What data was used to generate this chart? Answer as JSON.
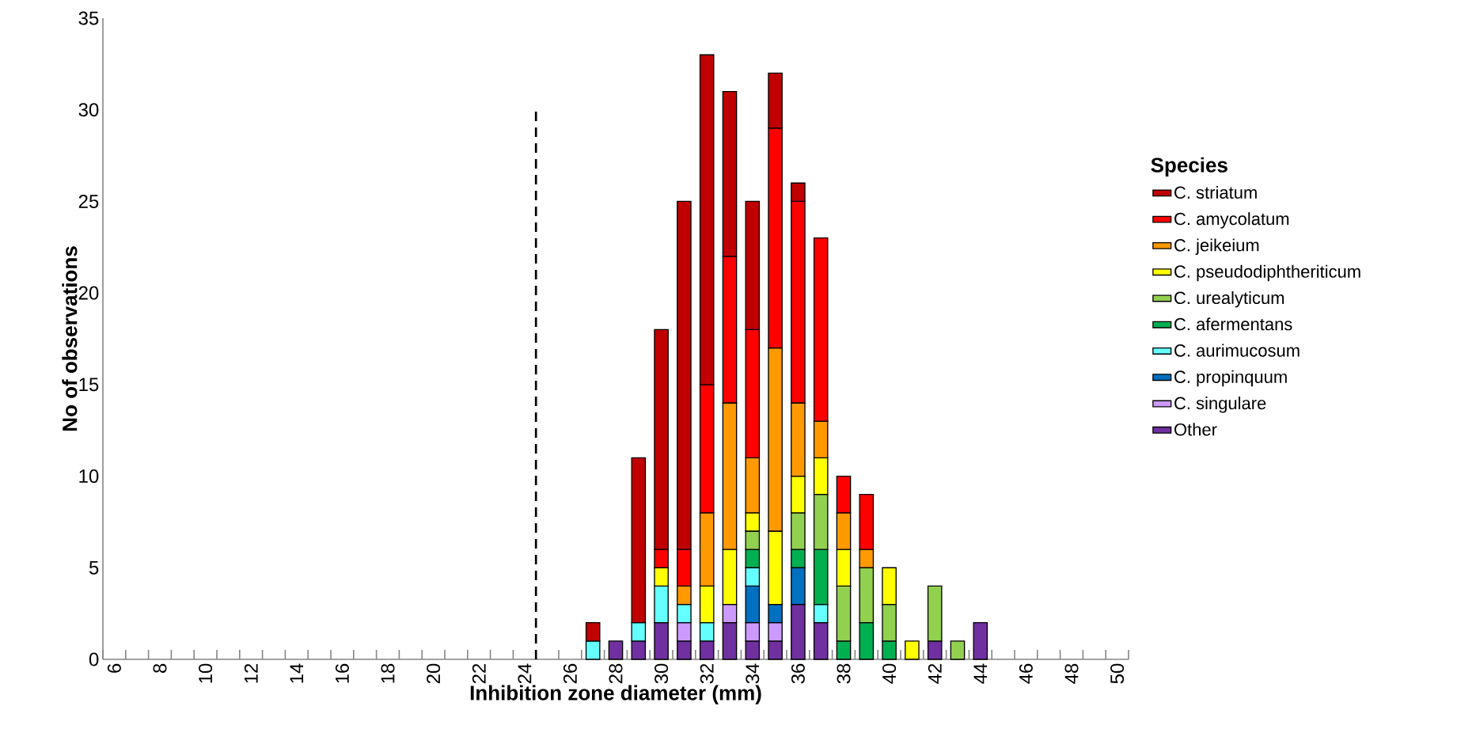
{
  "chart_data": {
    "type": "bar",
    "stacked": true,
    "xlabel": "Inhibition zone diameter (mm)",
    "ylabel": "No of observations",
    "legend_title": "Species",
    "x": [
      6,
      7,
      8,
      9,
      10,
      11,
      12,
      13,
      14,
      15,
      16,
      17,
      18,
      19,
      20,
      21,
      22,
      23,
      24,
      25,
      26,
      27,
      28,
      29,
      30,
      31,
      32,
      33,
      34,
      35,
      36,
      37,
      38,
      39,
      40,
      41,
      42,
      43,
      44,
      45,
      46,
      47,
      48,
      49,
      50
    ],
    "xlim": [
      5.5,
      50.5
    ],
    "xticks": [
      6,
      8,
      10,
      12,
      14,
      16,
      18,
      20,
      22,
      24,
      26,
      28,
      30,
      32,
      34,
      36,
      38,
      40,
      42,
      44,
      46,
      48,
      50
    ],
    "ylim": [
      0,
      35
    ],
    "yticks": [
      0,
      5,
      10,
      15,
      20,
      25,
      30,
      35
    ],
    "grid": false,
    "legend": "right",
    "ref_lines": [
      {
        "axis": "x",
        "value": 24.5,
        "line_style": "dashed",
        "color": "#000000"
      }
    ],
    "series": [
      {
        "name": "Other",
        "color": "#7030a0",
        "values": [
          0,
          0,
          0,
          0,
          0,
          0,
          0,
          0,
          0,
          0,
          0,
          0,
          0,
          0,
          0,
          0,
          0,
          0,
          0,
          0,
          0,
          0,
          1,
          1,
          2,
          1,
          1,
          2,
          1,
          1,
          3,
          2,
          0,
          0,
          0,
          0,
          1,
          0,
          2,
          0,
          0,
          0,
          0,
          0,
          0
        ]
      },
      {
        "name": "C. singulare",
        "color": "#cc99ff",
        "values": [
          0,
          0,
          0,
          0,
          0,
          0,
          0,
          0,
          0,
          0,
          0,
          0,
          0,
          0,
          0,
          0,
          0,
          0,
          0,
          0,
          0,
          0,
          0,
          0,
          0,
          1,
          0,
          1,
          1,
          1,
          0,
          0,
          0,
          0,
          0,
          0,
          0,
          0,
          0,
          0,
          0,
          0,
          0,
          0,
          0
        ]
      },
      {
        "name": "C. propinquum",
        "color": "#0070c0",
        "values": [
          0,
          0,
          0,
          0,
          0,
          0,
          0,
          0,
          0,
          0,
          0,
          0,
          0,
          0,
          0,
          0,
          0,
          0,
          0,
          0,
          0,
          0,
          0,
          0,
          0,
          0,
          0,
          0,
          2,
          1,
          2,
          0,
          0,
          0,
          0,
          0,
          0,
          0,
          0,
          0,
          0,
          0,
          0,
          0,
          0
        ]
      },
      {
        "name": "C. aurimucosum",
        "color": "#66ffff",
        "values": [
          0,
          0,
          0,
          0,
          0,
          0,
          0,
          0,
          0,
          0,
          0,
          0,
          0,
          0,
          0,
          0,
          0,
          0,
          0,
          0,
          0,
          1,
          0,
          1,
          2,
          1,
          1,
          0,
          1,
          0,
          0,
          1,
          0,
          0,
          0,
          0,
          0,
          0,
          0,
          0,
          0,
          0,
          0,
          0,
          0
        ]
      },
      {
        "name": "C. afermentans",
        "color": "#00b050",
        "values": [
          0,
          0,
          0,
          0,
          0,
          0,
          0,
          0,
          0,
          0,
          0,
          0,
          0,
          0,
          0,
          0,
          0,
          0,
          0,
          0,
          0,
          0,
          0,
          0,
          0,
          0,
          0,
          0,
          1,
          0,
          1,
          3,
          1,
          2,
          1,
          0,
          0,
          0,
          0,
          0,
          0,
          0,
          0,
          0,
          0
        ]
      },
      {
        "name": "C. urealyticum",
        "color": "#92d050",
        "values": [
          0,
          0,
          0,
          0,
          0,
          0,
          0,
          0,
          0,
          0,
          0,
          0,
          0,
          0,
          0,
          0,
          0,
          0,
          0,
          0,
          0,
          0,
          0,
          0,
          0,
          0,
          0,
          0,
          1,
          0,
          2,
          3,
          3,
          3,
          2,
          0,
          3,
          1,
          0,
          0,
          0,
          0,
          0,
          0,
          0
        ]
      },
      {
        "name": "C. pseudodiphtheriticum",
        "color": "#ffff00",
        "values": [
          0,
          0,
          0,
          0,
          0,
          0,
          0,
          0,
          0,
          0,
          0,
          0,
          0,
          0,
          0,
          0,
          0,
          0,
          0,
          0,
          0,
          0,
          0,
          0,
          1,
          0,
          2,
          3,
          1,
          4,
          2,
          2,
          2,
          0,
          2,
          1,
          0,
          0,
          0,
          0,
          0,
          0,
          0,
          0,
          0
        ]
      },
      {
        "name": "C. jeikeium",
        "color": "#ff9900",
        "values": [
          0,
          0,
          0,
          0,
          0,
          0,
          0,
          0,
          0,
          0,
          0,
          0,
          0,
          0,
          0,
          0,
          0,
          0,
          0,
          0,
          0,
          0,
          0,
          0,
          0,
          1,
          4,
          8,
          3,
          10,
          4,
          2,
          2,
          1,
          0,
          0,
          0,
          0,
          0,
          0,
          0,
          0,
          0,
          0,
          0
        ]
      },
      {
        "name": "C. amycolatum",
        "color": "#ff0000",
        "values": [
          0,
          0,
          0,
          0,
          0,
          0,
          0,
          0,
          0,
          0,
          0,
          0,
          0,
          0,
          0,
          0,
          0,
          0,
          0,
          0,
          0,
          0,
          0,
          0,
          1,
          2,
          7,
          8,
          7,
          12,
          11,
          10,
          2,
          3,
          0,
          0,
          0,
          0,
          0,
          0,
          0,
          0,
          0,
          0,
          0
        ]
      },
      {
        "name": "C. striatum",
        "color": "#c00000",
        "values": [
          0,
          0,
          0,
          0,
          0,
          0,
          0,
          0,
          0,
          0,
          0,
          0,
          0,
          0,
          0,
          0,
          0,
          0,
          0,
          0,
          0,
          1,
          0,
          9,
          12,
          19,
          18,
          9,
          7,
          3,
          1,
          0,
          0,
          0,
          0,
          0,
          0,
          0,
          0,
          0,
          0,
          0,
          0,
          0,
          0
        ]
      }
    ]
  }
}
